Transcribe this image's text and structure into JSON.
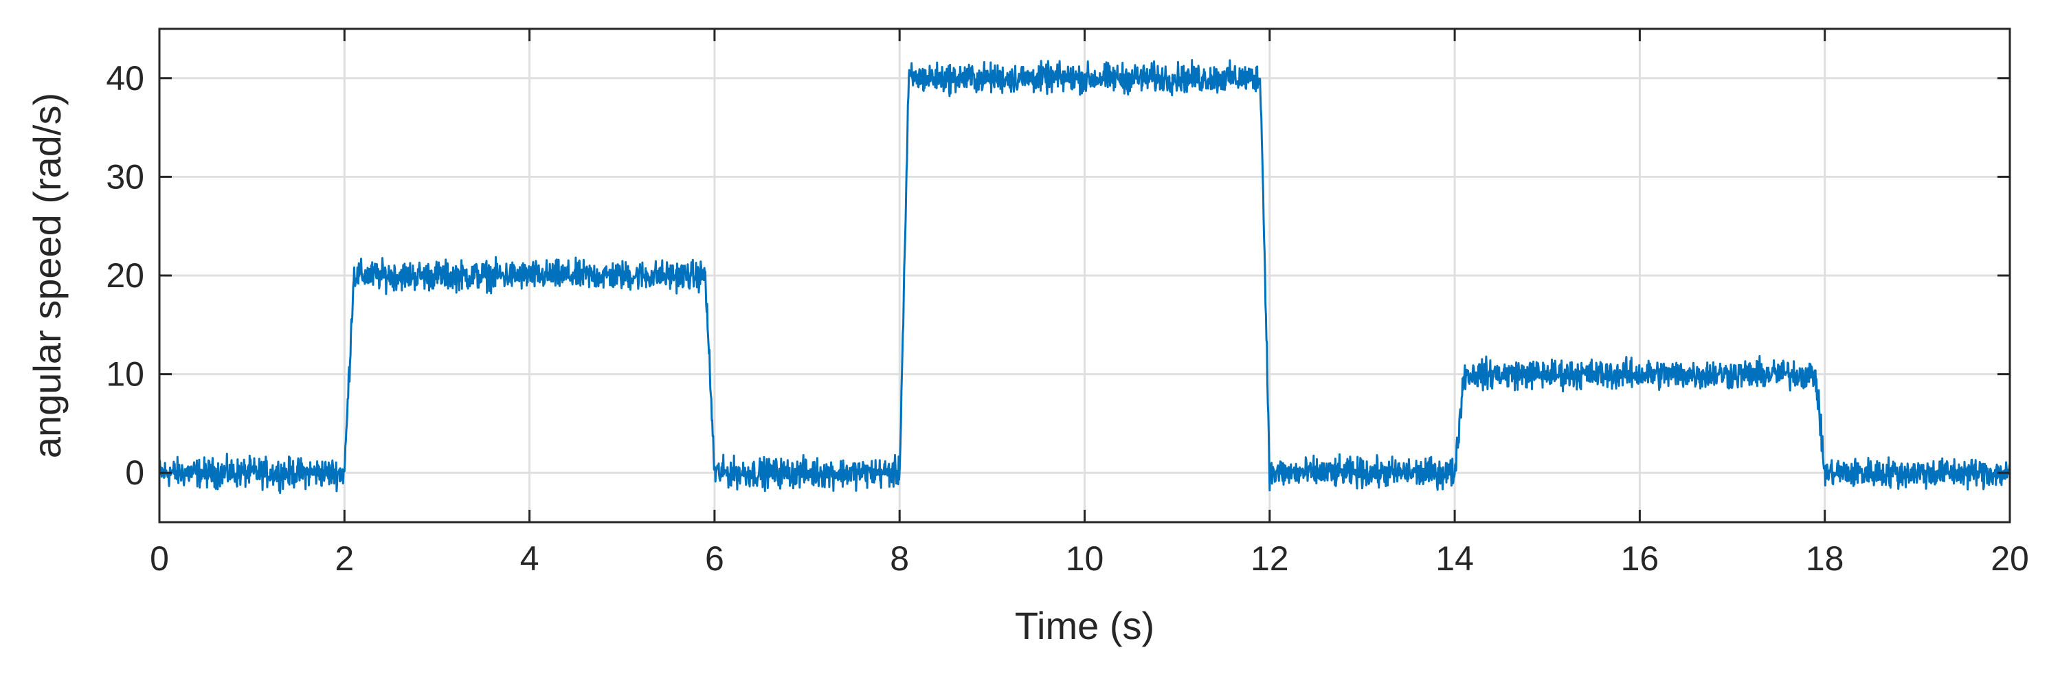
{
  "chart_data": {
    "type": "line",
    "title": "",
    "xlabel": "Time (s)",
    "ylabel": "angular speed (rad/s)",
    "xlim": [
      0,
      20
    ],
    "ylim": [
      -5,
      45
    ],
    "xticks": [
      0,
      2,
      4,
      6,
      8,
      10,
      12,
      14,
      16,
      18,
      20
    ],
    "yticks": [
      0,
      10,
      20,
      30,
      40
    ],
    "grid": true,
    "legend": "none",
    "colors": {
      "line": "#0072BD",
      "grid": "#dfdfdf",
      "axis": "#262626"
    },
    "noise_amplitude": 1.2,
    "series": [
      {
        "x": [
          0,
          2,
          2.1,
          5.9,
          6.0,
          8.0,
          8.1,
          11.9,
          12.0,
          14.0,
          14.1,
          17.9,
          18.0,
          20
        ],
        "y": [
          0,
          0,
          20,
          20,
          0,
          0,
          40,
          40,
          0,
          0,
          10,
          10,
          0,
          0
        ]
      }
    ]
  }
}
